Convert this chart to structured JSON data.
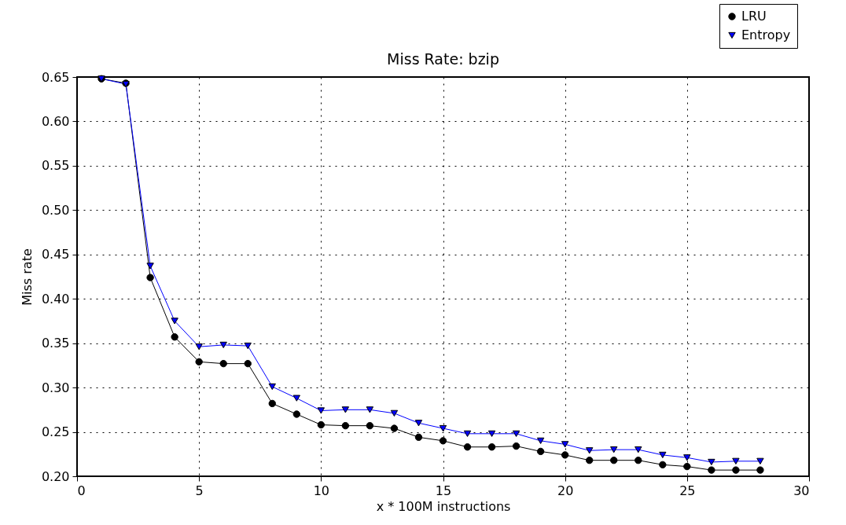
{
  "chart_data": {
    "type": "line",
    "title": "Miss Rate: bzip",
    "xlabel": "x * 100M instructions",
    "ylabel": "Miss rate",
    "x": [
      1,
      2,
      3,
      4,
      5,
      6,
      7,
      8,
      9,
      10,
      11,
      12,
      13,
      14,
      15,
      16,
      17,
      18,
      19,
      20,
      21,
      22,
      23,
      24,
      25,
      26,
      27,
      28
    ],
    "series": [
      {
        "name": "LRU",
        "color": "#000000",
        "marker": "circle",
        "values": [
          0.648,
          0.643,
          0.424,
          0.357,
          0.329,
          0.327,
          0.327,
          0.282,
          0.27,
          0.258,
          0.257,
          0.257,
          0.254,
          0.244,
          0.24,
          0.233,
          0.233,
          0.234,
          0.228,
          0.224,
          0.218,
          0.218,
          0.218,
          0.213,
          0.211,
          0.207,
          0.207,
          0.207
        ]
      },
      {
        "name": "Entropy",
        "color": "#0000ff",
        "marker": "triangle",
        "values": [
          0.648,
          0.642,
          0.437,
          0.375,
          0.346,
          0.348,
          0.347,
          0.301,
          0.288,
          0.274,
          0.275,
          0.275,
          0.271,
          0.26,
          0.254,
          0.248,
          0.248,
          0.248,
          0.24,
          0.236,
          0.229,
          0.23,
          0.23,
          0.224,
          0.221,
          0.216,
          0.217,
          0.217
        ]
      }
    ],
    "xlim": [
      0,
      30
    ],
    "xticks": [
      0,
      5,
      10,
      15,
      20,
      25,
      30
    ],
    "ylim": [
      0.2,
      0.65
    ],
    "yticks": [
      {
        "value": 0.2,
        "label": "0.20"
      },
      {
        "value": 0.25,
        "label": "0.25"
      },
      {
        "value": 0.3,
        "label": "0.30"
      },
      {
        "value": 0.35,
        "label": "0.35"
      },
      {
        "value": 0.4,
        "label": "0.40"
      },
      {
        "value": 0.45,
        "label": "0.45"
      },
      {
        "value": 0.5,
        "label": "0.50"
      },
      {
        "value": 0.55,
        "label": "0.55"
      },
      {
        "value": 0.6,
        "label": "0.60"
      },
      {
        "value": 0.65,
        "label": "0.65"
      }
    ],
    "grid": true,
    "legend": "top right",
    "line_style": "solid"
  }
}
